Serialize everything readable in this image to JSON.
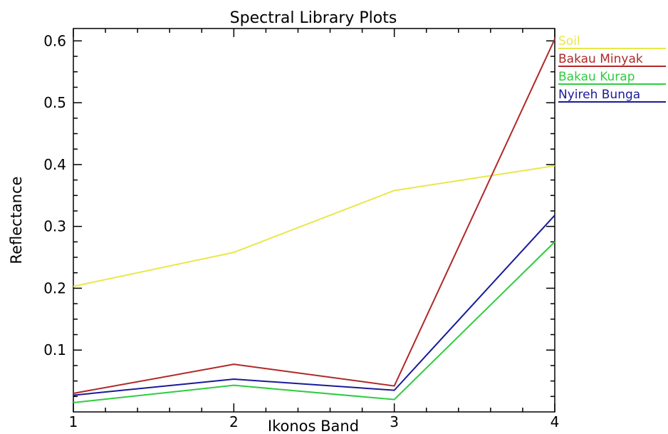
{
  "chart_data": {
    "type": "line",
    "title": "Spectral Library Plots",
    "xlabel": "Ikonos Band",
    "ylabel": "Reflectance",
    "x": [
      1,
      2,
      3,
      4
    ],
    "xlim": [
      1,
      4
    ],
    "ylim": [
      0,
      0.62
    ],
    "x_ticks": [
      "1",
      "2",
      "3",
      "4"
    ],
    "y_ticks": [
      0.1,
      0.2,
      0.3,
      0.4,
      0.5,
      0.6
    ],
    "y_tick_labels": [
      "0.1",
      "0.2",
      "0.3",
      "0.4",
      "0.5",
      "0.6"
    ],
    "grid": false,
    "legend_position": "right",
    "series": [
      {
        "name": "Soil",
        "color": "#e8e84a",
        "values": [
          0.203,
          0.258,
          0.358,
          0.398
        ]
      },
      {
        "name": "Bakau Minyak",
        "color": "#b02828",
        "values": [
          0.03,
          0.077,
          0.042,
          0.603
        ]
      },
      {
        "name": "Bakau Kurap",
        "color": "#2ecc40",
        "values": [
          0.015,
          0.043,
          0.02,
          0.275
        ]
      },
      {
        "name": "Nyireh Bunga",
        "color": "#1a1a9a",
        "values": [
          0.027,
          0.053,
          0.035,
          0.318
        ]
      }
    ]
  }
}
